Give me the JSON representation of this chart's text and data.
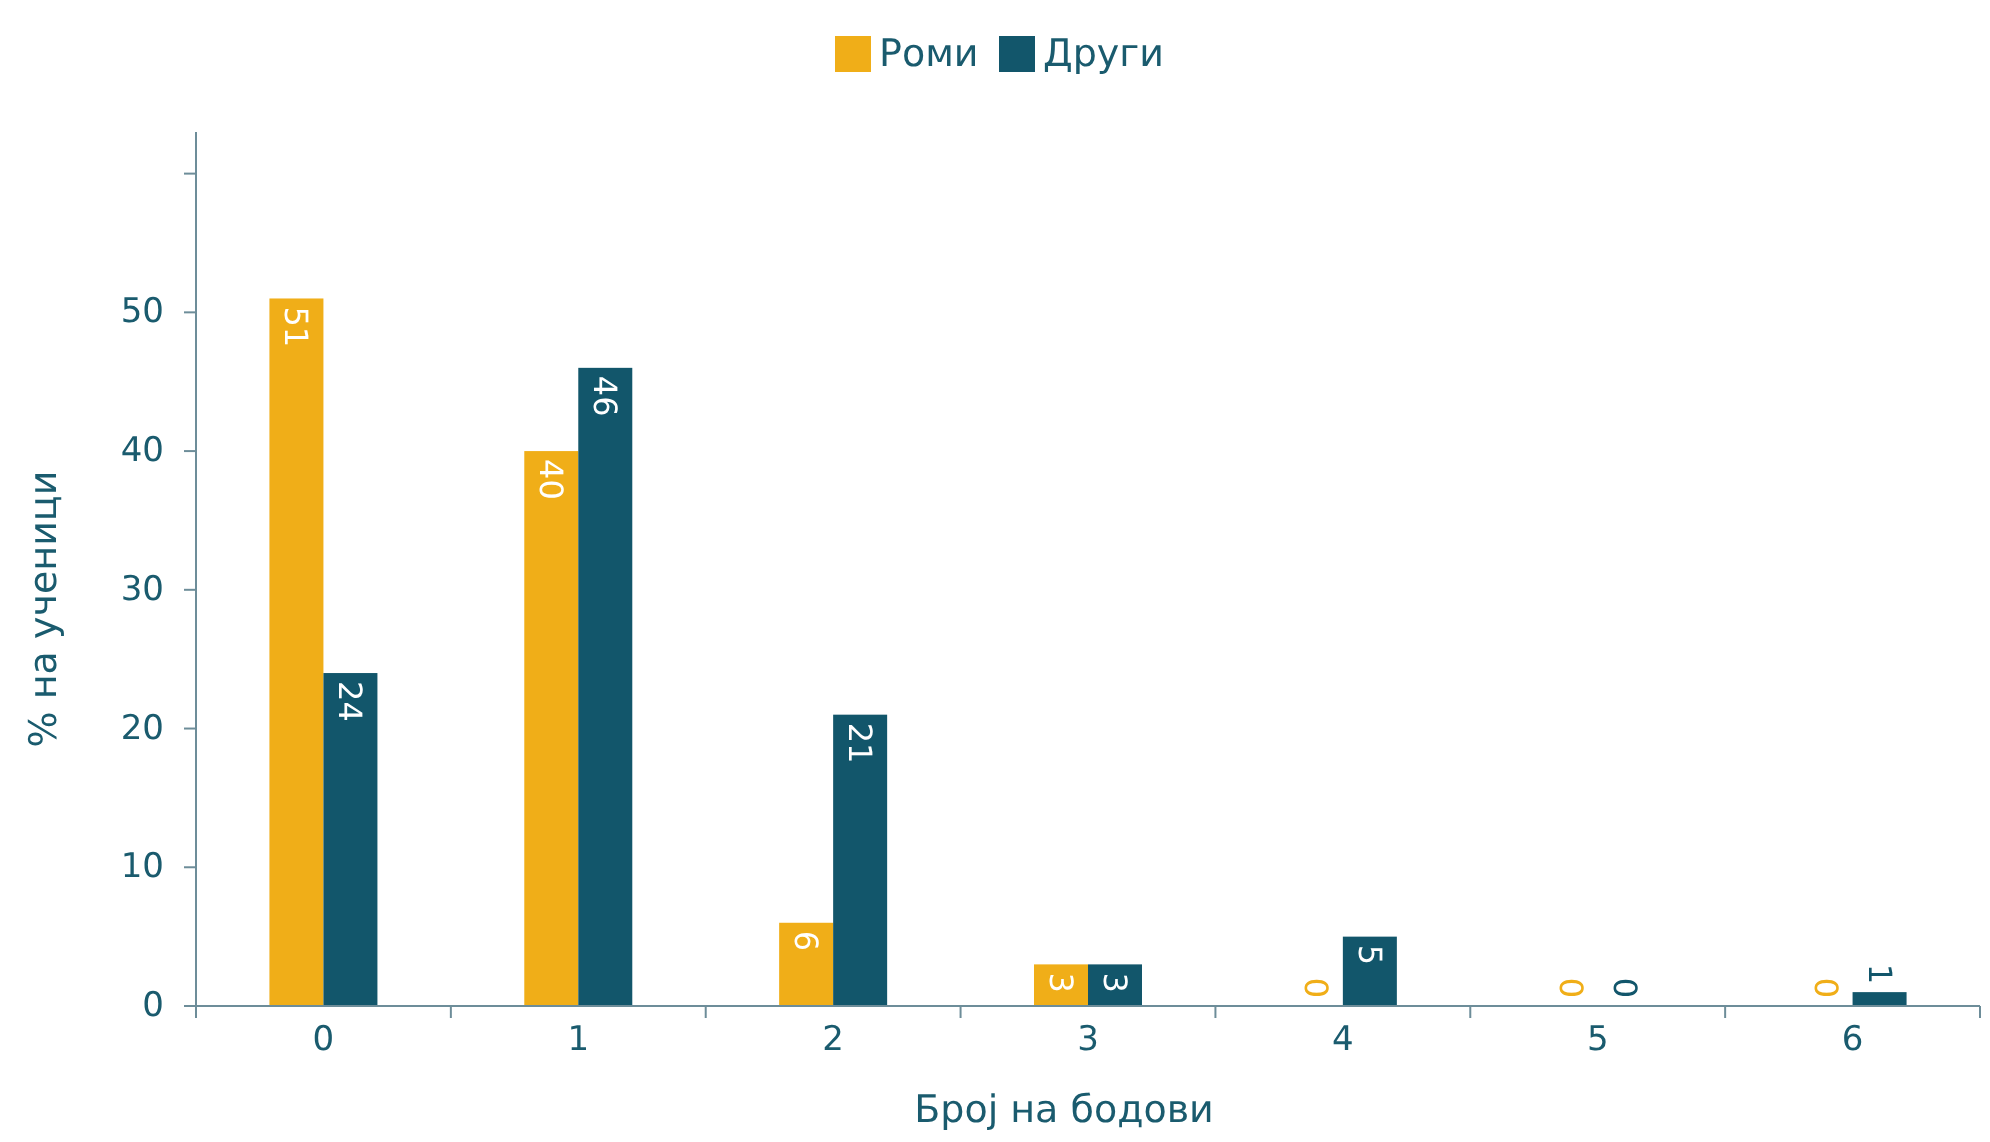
{
  "chart_data": {
    "type": "bar",
    "xlabel": "Број на бодови",
    "ylabel": "% на ученици",
    "categories": [
      "0",
      "1",
      "2",
      "3",
      "4",
      "5",
      "6"
    ],
    "series": [
      {
        "name": "Роми",
        "color": "#f0ae18",
        "values": [
          51,
          40,
          6,
          3,
          0,
          0,
          0
        ]
      },
      {
        "name": "Други",
        "color": "#12566b",
        "values": [
          24,
          46,
          21,
          3,
          5,
          0,
          1
        ]
      }
    ],
    "ylim": [
      0,
      63
    ],
    "yticks": [
      0,
      10,
      20,
      30,
      40,
      50,
      {
        "value": 60,
        "label": null
      }
    ],
    "data_labels": true,
    "legend": "top",
    "grid": false
  }
}
